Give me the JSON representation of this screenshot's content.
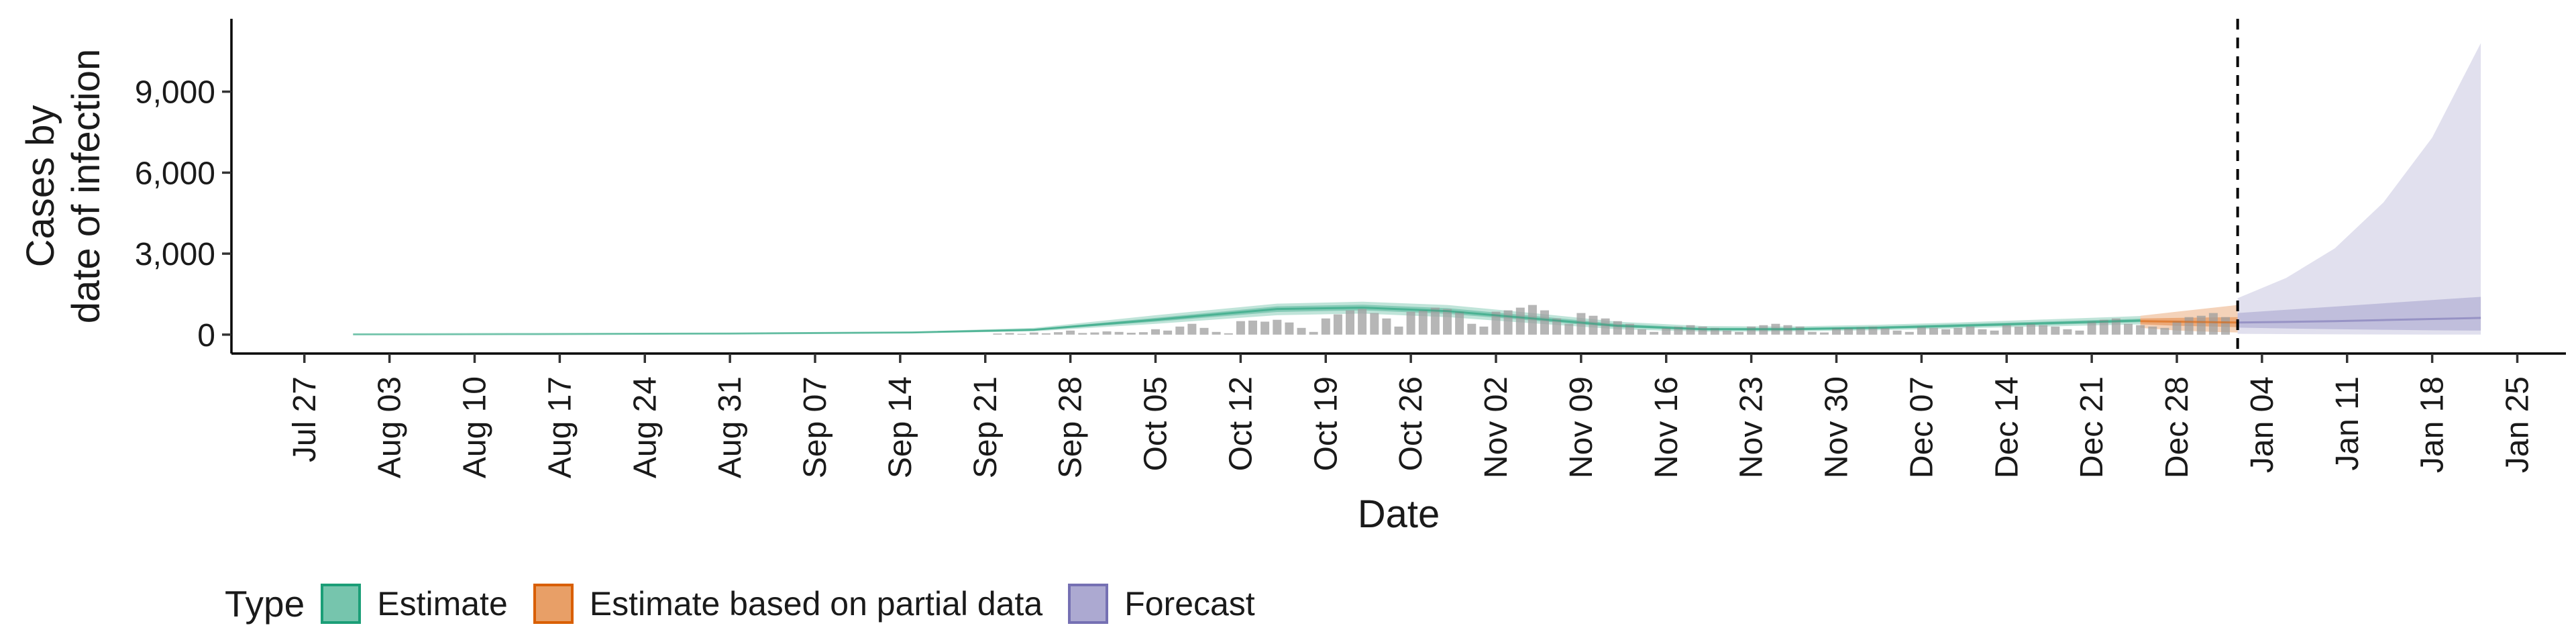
{
  "chart_data": {
    "type": "area",
    "title": "",
    "ylabel": [
      "Cases by",
      "date of infection"
    ],
    "xlabel": "Date",
    "ylim": [
      -700,
      11700
    ],
    "yticks": [
      0,
      3000,
      6000,
      9000
    ],
    "ytick_labels": [
      "0",
      "3,000",
      "6,000",
      "9,000"
    ],
    "xlim": [
      "2020-07-21",
      "2021-01-29"
    ],
    "xticks": [
      "2020-07-27",
      "2020-08-03",
      "2020-08-10",
      "2020-08-17",
      "2020-08-24",
      "2020-08-31",
      "2020-09-07",
      "2020-09-14",
      "2020-09-21",
      "2020-09-28",
      "2020-10-05",
      "2020-10-12",
      "2020-10-19",
      "2020-10-26",
      "2020-11-02",
      "2020-11-09",
      "2020-11-16",
      "2020-11-23",
      "2020-11-30",
      "2020-12-07",
      "2020-12-14",
      "2020-12-21",
      "2020-12-28",
      "2021-01-04",
      "2021-01-11",
      "2021-01-18",
      "2021-01-25"
    ],
    "xtick_labels": [
      "Jul 27",
      "Aug 03",
      "Aug 10",
      "Aug 17",
      "Aug 24",
      "Aug 31",
      "Sep 07",
      "Sep 14",
      "Sep 21",
      "Sep 28",
      "Oct 05",
      "Oct 12",
      "Oct 19",
      "Oct 26",
      "Nov 02",
      "Nov 09",
      "Nov 16",
      "Nov 23",
      "Nov 30",
      "Dec 07",
      "Dec 14",
      "Dec 21",
      "Dec 28",
      "Jan 04",
      "Jan 11",
      "Jan 18",
      "Jan 25"
    ],
    "vline_date": "2021-01-02",
    "grid": false,
    "legend_position": "bottom",
    "series": [
      {
        "name": "Estimate",
        "color": "#1b9e77",
        "x": [
          "2020-07-31",
          "2020-08-15",
          "2020-08-31",
          "2020-09-15",
          "2020-09-25",
          "2020-10-05",
          "2020-10-15",
          "2020-10-22",
          "2020-10-29",
          "2020-11-05",
          "2020-11-12",
          "2020-11-19",
          "2020-11-26",
          "2020-12-03",
          "2020-12-10",
          "2020-12-17",
          "2020-12-25"
        ],
        "median": [
          10,
          20,
          40,
          80,
          180,
          550,
          950,
          1000,
          870,
          600,
          330,
          200,
          200,
          250,
          330,
          420,
          520
        ],
        "lower90": [
          5,
          10,
          25,
          55,
          120,
          400,
          720,
          780,
          650,
          420,
          200,
          110,
          120,
          160,
          230,
          300,
          380
        ],
        "upper90": [
          15,
          30,
          60,
          110,
          250,
          720,
          1150,
          1220,
          1100,
          800,
          480,
          320,
          300,
          360,
          450,
          560,
          690
        ],
        "lower50": [
          8,
          15,
          33,
          68,
          150,
          480,
          840,
          900,
          770,
          520,
          270,
          160,
          160,
          210,
          280,
          360,
          460
        ],
        "upper50": [
          12,
          25,
          48,
          92,
          210,
          620,
          1050,
          1110,
          980,
          700,
          400,
          250,
          250,
          300,
          390,
          480,
          590
        ]
      },
      {
        "name": "Estimate based on partial data",
        "color": "#d95f02",
        "x": [
          "2020-12-25",
          "2020-12-28",
          "2020-12-31",
          "2021-01-02"
        ],
        "median": [
          500,
          480,
          460,
          450
        ],
        "lower90": [
          250,
          150,
          100,
          80
        ],
        "upper90": [
          700,
          850,
          1000,
          1100
        ],
        "lower50": [
          380,
          330,
          300,
          280
        ],
        "upper50": [
          600,
          620,
          640,
          650
        ]
      },
      {
        "name": "Forecast",
        "color": "#7570b3",
        "x": [
          "2021-01-02",
          "2021-01-06",
          "2021-01-10",
          "2021-01-14",
          "2021-01-18",
          "2021-01-22"
        ],
        "median": [
          450,
          470,
          500,
          540,
          580,
          620
        ],
        "lower90": [
          30,
          20,
          10,
          5,
          0,
          0
        ],
        "upper90": [
          1350,
          2100,
          3200,
          4900,
          7300,
          10800
        ],
        "lower50": [
          260,
          230,
          200,
          180,
          160,
          150
        ],
        "upper50": [
          800,
          920,
          1040,
          1160,
          1280,
          1400
        ]
      }
    ],
    "observed_bars": {
      "color": "#9e9e9e",
      "dates": [
        "2020-09-22",
        "2020-09-23",
        "2020-09-24",
        "2020-09-25",
        "2020-09-26",
        "2020-09-27",
        "2020-09-28",
        "2020-09-29",
        "2020-09-30",
        "2020-10-01",
        "2020-10-02",
        "2020-10-03",
        "2020-10-04",
        "2020-10-05",
        "2020-10-06",
        "2020-10-07",
        "2020-10-08",
        "2020-10-09",
        "2020-10-10",
        "2020-10-11",
        "2020-10-12",
        "2020-10-13",
        "2020-10-14",
        "2020-10-15",
        "2020-10-16",
        "2020-10-17",
        "2020-10-18",
        "2020-10-19",
        "2020-10-20",
        "2020-10-21",
        "2020-10-22",
        "2020-10-23",
        "2020-10-24",
        "2020-10-25",
        "2020-10-26",
        "2020-10-27",
        "2020-10-28",
        "2020-10-29",
        "2020-10-30",
        "2020-10-31",
        "2020-11-01",
        "2020-11-02",
        "2020-11-03",
        "2020-11-04",
        "2020-11-05",
        "2020-11-06",
        "2020-11-07",
        "2020-11-08",
        "2020-11-09",
        "2020-11-10",
        "2020-11-11",
        "2020-11-12",
        "2020-11-13",
        "2020-11-14",
        "2020-11-15",
        "2020-11-16",
        "2020-11-17",
        "2020-11-18",
        "2020-11-19",
        "2020-11-20",
        "2020-11-21",
        "2020-11-22",
        "2020-11-23",
        "2020-11-24",
        "2020-11-25",
        "2020-11-26",
        "2020-11-27",
        "2020-11-28",
        "2020-11-29",
        "2020-11-30",
        "2020-12-01",
        "2020-12-02",
        "2020-12-03",
        "2020-12-04",
        "2020-12-05",
        "2020-12-06",
        "2020-12-07",
        "2020-12-08",
        "2020-12-09",
        "2020-12-10",
        "2020-12-11",
        "2020-12-12",
        "2020-12-13",
        "2020-12-14",
        "2020-12-15",
        "2020-12-16",
        "2020-12-17",
        "2020-12-18",
        "2020-12-19",
        "2020-12-20",
        "2020-12-21",
        "2020-12-22",
        "2020-12-23",
        "2020-12-24",
        "2020-12-25",
        "2020-12-26",
        "2020-12-27",
        "2020-12-28",
        "2020-12-29",
        "2020-12-30",
        "2020-12-31",
        "2021-01-01"
      ],
      "values": [
        40,
        60,
        30,
        80,
        50,
        90,
        150,
        60,
        80,
        120,
        100,
        70,
        90,
        200,
        150,
        300,
        400,
        250,
        100,
        50,
        500,
        520,
        480,
        550,
        450,
        250,
        100,
        600,
        750,
        900,
        950,
        800,
        600,
        300,
        850,
        900,
        1000,
        950,
        850,
        400,
        300,
        850,
        900,
        1000,
        1100,
        900,
        600,
        400,
        800,
        700,
        600,
        500,
        400,
        200,
        100,
        250,
        300,
        350,
        300,
        250,
        150,
        100,
        300,
        350,
        400,
        350,
        300,
        100,
        80,
        250,
        250,
        280,
        300,
        250,
        150,
        100,
        300,
        250,
        200,
        250,
        300,
        200,
        150,
        350,
        300,
        400,
        350,
        300,
        200,
        150,
        500,
        550,
        600,
        400,
        350,
        300,
        250,
        500,
        650,
        700,
        800,
        650
      ]
    }
  }
}
